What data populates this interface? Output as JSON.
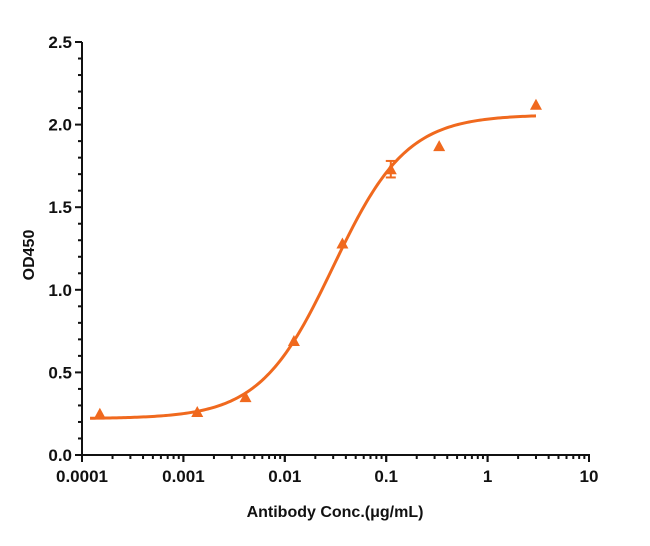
{
  "chart_data": {
    "type": "scatter",
    "title": "",
    "xlabel": "Antibody Conc.(μg/mL)",
    "ylabel": "OD450",
    "xscale": "log",
    "xlim": [
      0.0001,
      10
    ],
    "ylim": [
      0,
      2.5
    ],
    "x_ticks": [
      "0.0001",
      "0.001",
      "0.01",
      "0.1",
      "1",
      "10"
    ],
    "y_ticks": [
      "0.0",
      "0.5",
      "1.0",
      "1.5",
      "2.0",
      "2.5"
    ],
    "grid": false,
    "legend": null,
    "color": "#F0691E",
    "marker": "triangle",
    "series": [
      {
        "name": "OD450",
        "x": [
          0.00015,
          0.00137,
          0.0041,
          0.0123,
          0.037,
          0.111,
          0.333,
          3.0
        ],
        "y": [
          0.25,
          0.26,
          0.35,
          0.69,
          1.28,
          1.73,
          1.87,
          2.12
        ],
        "error": [
          0,
          0,
          0,
          0,
          0,
          0.05,
          0,
          0
        ]
      }
    ],
    "fit": {
      "model": "4PL",
      "bottom": 0.22,
      "top": 2.06,
      "ec50": 0.03,
      "hill": 1.2,
      "x_range": [
        0.00012,
        3.0
      ]
    }
  }
}
